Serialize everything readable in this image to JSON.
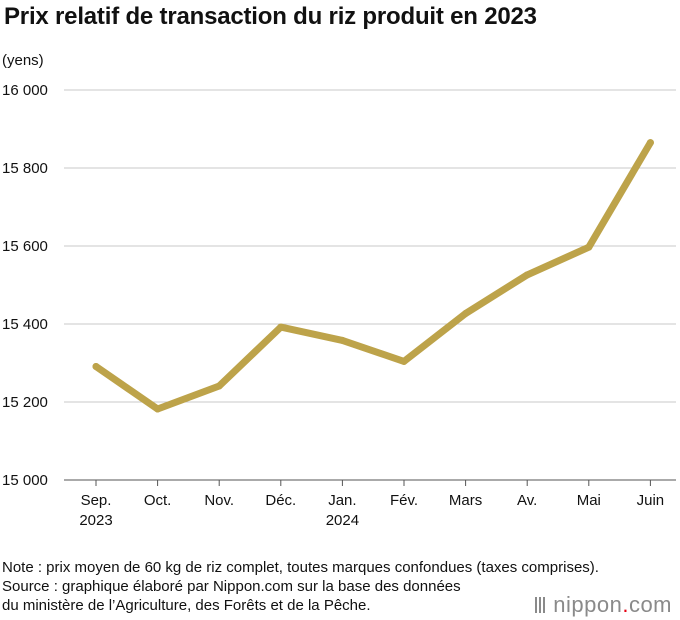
{
  "title": "Prix relatif de transaction du riz produit en 2023",
  "unit_label": "(yens)",
  "notes": [
    "Note : prix moyen de 60 kg de riz complet, toutes marques confondues (taxes comprises).",
    "Source : graphique élaboré par Nippon.com sur la base des données",
    "du ministère de l’Agriculture, des Forêts et de la Pêche."
  ],
  "logo": {
    "text_before": "nippon",
    "dot": ".",
    "text_after": "com",
    "dot_color": "#e60012"
  },
  "chart_data": {
    "type": "line",
    "categories": [
      [
        "Sep.",
        "2023"
      ],
      [
        "Oct."
      ],
      [
        "Nov."
      ],
      [
        "Déc."
      ],
      [
        "Jan.",
        "2024"
      ],
      [
        "Fév."
      ],
      [
        "Mars"
      ],
      [
        "Av."
      ],
      [
        "Mai"
      ],
      [
        "Juin"
      ]
    ],
    "values": [
      15291,
      15182,
      15241,
      15392,
      15358,
      15304,
      15427,
      15526,
      15597,
      15865
    ],
    "yticks": [
      15000,
      15200,
      15400,
      15600,
      15800,
      16000
    ],
    "ytick_labels": [
      "15 000",
      "15 200",
      "15 400",
      "15 600",
      "15 800",
      "16 000"
    ],
    "ylim": [
      15000,
      16000
    ],
    "grid": true,
    "line_color": "#bda34a",
    "grid_color": "#c8c8c8"
  }
}
